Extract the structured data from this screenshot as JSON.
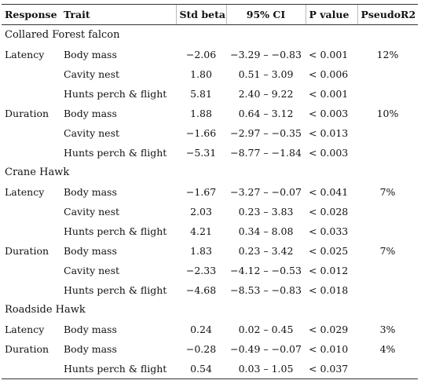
{
  "headers": {
    "response": "Response",
    "trait": "Trait",
    "std_beta": "Std beta",
    "ci": "95% CI",
    "p_value": "P  value",
    "pseudo_r2": "PseudoR2"
  },
  "groups": [
    {
      "species": "Collared Forest falcon",
      "rows": [
        {
          "response": "Latency",
          "trait": "Body mass",
          "std_beta": "−2.06",
          "ci": "−3.29 – −0.83",
          "p": "< 0.001",
          "r2": "12%"
        },
        {
          "response": "",
          "trait": "Cavity nest",
          "std_beta": "1.80",
          "ci": "0.51 – 3.09",
          "p": "< 0.006",
          "r2": ""
        },
        {
          "response": "",
          "trait": "Hunts perch & flight",
          "std_beta": "5.81",
          "ci": "2.40 – 9.22",
          "p": "< 0.001",
          "r2": ""
        },
        {
          "response": "Duration",
          "trait": "Body mass",
          "std_beta": "1.88",
          "ci": "0.64 – 3.12",
          "p": "< 0.003",
          "r2": "10%"
        },
        {
          "response": "",
          "trait": "Cavity nest",
          "std_beta": "−1.66",
          "ci": "−2.97 – −0.35",
          "p": "< 0.013",
          "r2": ""
        },
        {
          "response": "",
          "trait": "Hunts perch & flight",
          "std_beta": "−5.31",
          "ci": "−8.77 – −1.84",
          "p": "< 0.003",
          "r2": ""
        }
      ]
    },
    {
      "species": "Crane Hawk",
      "rows": [
        {
          "response": "Latency",
          "trait": "Body mass",
          "std_beta": "−1.67",
          "ci": "−3.27 – −0.07",
          "p": "< 0.041",
          "r2": "7%"
        },
        {
          "response": "",
          "trait": "Cavity nest",
          "std_beta": "2.03",
          "ci": "0.23 – 3.83",
          "p": "< 0.028",
          "r2": ""
        },
        {
          "response": "",
          "trait": "Hunts perch & flight",
          "std_beta": "4.21",
          "ci": "0.34 – 8.08",
          "p": "< 0.033",
          "r2": ""
        },
        {
          "response": "Duration",
          "trait": "Body mass",
          "std_beta": "1.83",
          "ci": "0.23 – 3.42",
          "p": "< 0.025",
          "r2": "7%"
        },
        {
          "response": "",
          "trait": "Cavity nest",
          "std_beta": "−2.33",
          "ci": "−4.12 – −0.53",
          "p": "< 0.012",
          "r2": ""
        },
        {
          "response": "",
          "trait": "Hunts perch & flight",
          "std_beta": "−4.68",
          "ci": "−8.53 – −0.83",
          "p": "< 0.018",
          "r2": ""
        }
      ]
    },
    {
      "species": "Roadside Hawk",
      "rows": [
        {
          "response": "Latency",
          "trait": "Body mass",
          "std_beta": "0.24",
          "ci": "0.02 – 0.45",
          "p": "< 0.029",
          "r2": "3%"
        },
        {
          "response": "Duration",
          "trait": "Body mass",
          "std_beta": "−0.28",
          "ci": "−0.49 – −0.07",
          "p": "< 0.010",
          "r2": "4%"
        },
        {
          "response": "",
          "trait": "Hunts perch & flight",
          "std_beta": "0.54",
          "ci": "0.03 – 1.05",
          "p": "< 0.037",
          "r2": ""
        }
      ]
    }
  ]
}
